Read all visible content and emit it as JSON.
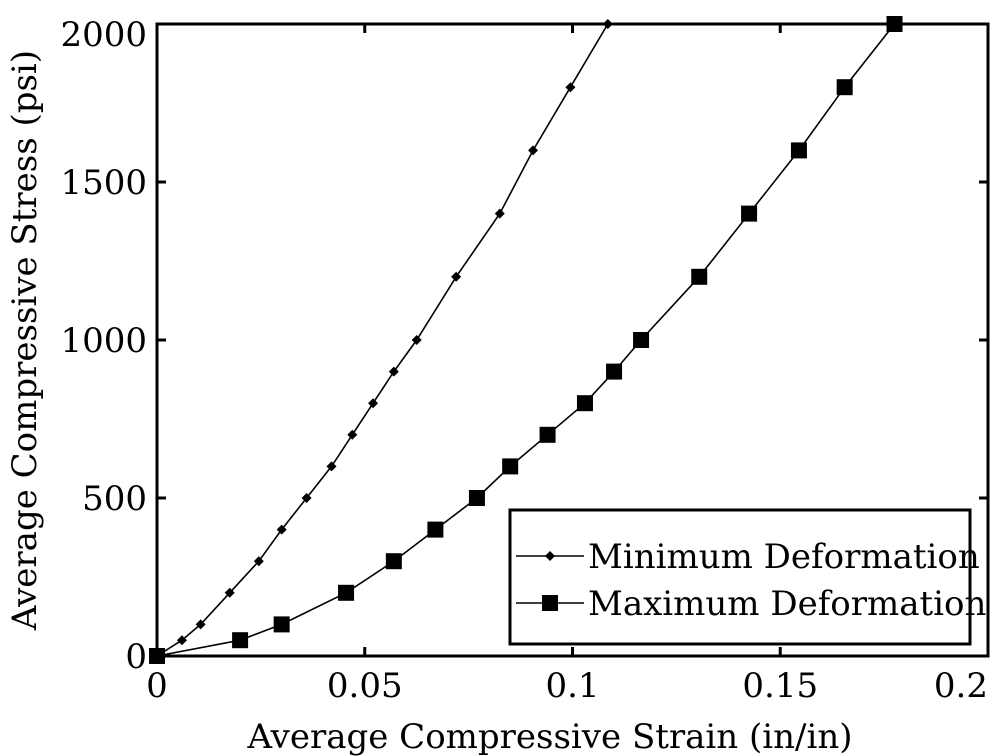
{
  "chart_data": {
    "type": "line",
    "title": "",
    "xlabel": "Average Compressive Strain (in/in)",
    "ylabel": "Average Compressive Stress (psi)",
    "xlim": [
      0,
      0.2
    ],
    "ylim": [
      0,
      2000
    ],
    "xticks": [
      0,
      0.05,
      0.1,
      0.15,
      0.2
    ],
    "xtick_labels": [
      "0",
      "0.05",
      "0.1",
      "0.15",
      "0.2"
    ],
    "yticks": [
      0,
      500,
      1000,
      1500,
      2000
    ],
    "ytick_labels": [
      "0",
      "500",
      "1000",
      "1500",
      "2000"
    ],
    "grid": false,
    "legend_position": "bottom-right",
    "series": [
      {
        "name": "Minimum Deformation",
        "marker": "diamond",
        "color": "#000000",
        "x": [
          0,
          0.006,
          0.0105,
          0.0175,
          0.0245,
          0.03,
          0.036,
          0.042,
          0.047,
          0.052,
          0.057,
          0.0625,
          0.072,
          0.0825,
          0.0905,
          0.0995,
          0.1085
        ],
        "y": [
          0,
          50,
          100,
          200,
          300,
          400,
          500,
          600,
          700,
          800,
          900,
          1000,
          1200,
          1400,
          1600,
          1800,
          2000
        ]
      },
      {
        "name": "Maximum Deformation",
        "marker": "square",
        "color": "#000000",
        "x": [
          0,
          0.02,
          0.03,
          0.0455,
          0.057,
          0.067,
          0.077,
          0.085,
          0.094,
          0.103,
          0.11,
          0.1165,
          0.1305,
          0.1425,
          0.1545,
          0.1655,
          0.1775
        ],
        "y": [
          0,
          50,
          100,
          200,
          300,
          400,
          500,
          600,
          700,
          800,
          900,
          1000,
          1200,
          1400,
          1600,
          1800,
          2000
        ]
      }
    ]
  }
}
